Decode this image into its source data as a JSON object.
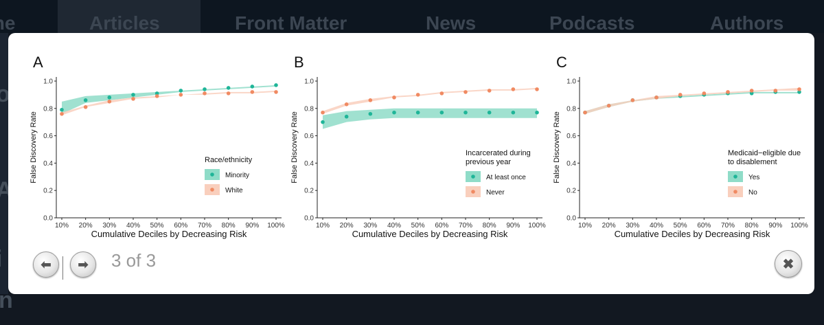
{
  "background": {
    "nav_items": [
      "me",
      "Articles",
      "Front Matter",
      "News",
      "Podcasts",
      "Authors"
    ],
    "left_fragments": [
      "on",
      "Al",
      "i"
    ],
    "bottom_fragment": "n"
  },
  "viewer": {
    "prev_icon": "arrow-left-icon",
    "next_icon": "arrow-right-icon",
    "close_icon": "close-icon",
    "counter": "3 of 3"
  },
  "colors": {
    "teal": "#1fb598",
    "teal_band": "#8fdcc8",
    "orange": "#f08a62",
    "orange_band": "#f9cfbd"
  },
  "chart_data": [
    {
      "type": "line",
      "panel_label": "A",
      "xlabel": "Cumulative Deciles by Decreasing Risk",
      "ylabel": "False Discovery Rate",
      "categories": [
        "10%",
        "20%",
        "30%",
        "40%",
        "50%",
        "60%",
        "70%",
        "80%",
        "90%",
        "100%"
      ],
      "y_ticks": [
        "0.0",
        "0.2",
        "0.4",
        "0.6",
        "0.8",
        "1.0"
      ],
      "ylim": [
        0,
        1.03
      ],
      "legend_title": "Race/ethnicity",
      "legend_position": "right",
      "series": [
        {
          "name": "Minority",
          "color": "#1fb598",
          "values": [
            0.79,
            0.86,
            0.88,
            0.9,
            0.91,
            0.93,
            0.94,
            0.95,
            0.96,
            0.97
          ],
          "lower": [
            0.76,
            0.84,
            0.86,
            0.88,
            0.9,
            0.92,
            0.93,
            0.94,
            0.95,
            0.96
          ],
          "upper": [
            0.85,
            0.89,
            0.9,
            0.91,
            0.92,
            0.93,
            0.94,
            0.95,
            0.96,
            0.97
          ]
        },
        {
          "name": "White",
          "color": "#f08a62",
          "values": [
            0.76,
            0.81,
            0.85,
            0.87,
            0.89,
            0.9,
            0.91,
            0.91,
            0.92,
            0.92
          ],
          "lower": [
            0.75,
            0.81,
            0.84,
            0.87,
            0.88,
            0.9,
            0.9,
            0.91,
            0.91,
            0.92
          ],
          "upper": [
            0.77,
            0.82,
            0.86,
            0.88,
            0.89,
            0.9,
            0.91,
            0.92,
            0.92,
            0.93
          ]
        }
      ]
    },
    {
      "type": "line",
      "panel_label": "B",
      "xlabel": "Cumulative Deciles by Decreasing Risk",
      "ylabel": "False Discovery Rate",
      "categories": [
        "10%",
        "20%",
        "30%",
        "40%",
        "50%",
        "60%",
        "70%",
        "80%",
        "90%",
        "100%"
      ],
      "y_ticks": [
        "0.0",
        "0.2",
        "0.4",
        "0.6",
        "0.8",
        "1.0"
      ],
      "ylim": [
        0,
        1.03
      ],
      "legend_title": "Incarcerated during previous year",
      "legend_position": "right",
      "series": [
        {
          "name": "At least once",
          "color": "#1fb598",
          "values": [
            0.7,
            0.74,
            0.76,
            0.77,
            0.77,
            0.77,
            0.77,
            0.77,
            0.77,
            0.77
          ],
          "lower": [
            0.65,
            0.7,
            0.72,
            0.73,
            0.73,
            0.73,
            0.73,
            0.73,
            0.73,
            0.73
          ],
          "upper": [
            0.75,
            0.78,
            0.79,
            0.8,
            0.8,
            0.8,
            0.8,
            0.8,
            0.8,
            0.8
          ]
        },
        {
          "name": "Never",
          "color": "#f08a62",
          "values": [
            0.77,
            0.83,
            0.86,
            0.88,
            0.9,
            0.91,
            0.92,
            0.93,
            0.94,
            0.94
          ],
          "lower": [
            0.76,
            0.82,
            0.85,
            0.88,
            0.89,
            0.91,
            0.92,
            0.93,
            0.93,
            0.94
          ],
          "upper": [
            0.78,
            0.84,
            0.87,
            0.89,
            0.9,
            0.92,
            0.93,
            0.94,
            0.94,
            0.95
          ]
        }
      ]
    },
    {
      "type": "line",
      "panel_label": "C",
      "xlabel": "Cumulative Deciles by Decreasing Risk",
      "ylabel": "False Discovery Rate",
      "categories": [
        "10%",
        "20%",
        "30%",
        "40%",
        "50%",
        "60%",
        "70%",
        "80%",
        "90%",
        "100%"
      ],
      "y_ticks": [
        "0.0",
        "0.2",
        "0.4",
        "0.6",
        "0.8",
        "1.0"
      ],
      "ylim": [
        0,
        1.03
      ],
      "legend_title": "Medicaid−eligible due to disablement",
      "legend_position": "right",
      "series": [
        {
          "name": "Yes",
          "color": "#1fb598",
          "values": [
            0.77,
            0.82,
            0.86,
            0.88,
            0.89,
            0.9,
            0.91,
            0.91,
            0.92,
            0.92
          ],
          "lower": [
            0.76,
            0.81,
            0.85,
            0.87,
            0.88,
            0.89,
            0.9,
            0.91,
            0.91,
            0.91
          ],
          "upper": [
            0.78,
            0.83,
            0.86,
            0.88,
            0.89,
            0.9,
            0.91,
            0.92,
            0.92,
            0.92
          ]
        },
        {
          "name": "No",
          "color": "#f08a62",
          "values": [
            0.77,
            0.82,
            0.86,
            0.88,
            0.9,
            0.91,
            0.92,
            0.93,
            0.93,
            0.94
          ],
          "lower": [
            0.76,
            0.81,
            0.85,
            0.87,
            0.89,
            0.9,
            0.91,
            0.92,
            0.93,
            0.93
          ],
          "upper": [
            0.78,
            0.83,
            0.86,
            0.89,
            0.9,
            0.91,
            0.92,
            0.93,
            0.94,
            0.95
          ]
        }
      ]
    }
  ]
}
